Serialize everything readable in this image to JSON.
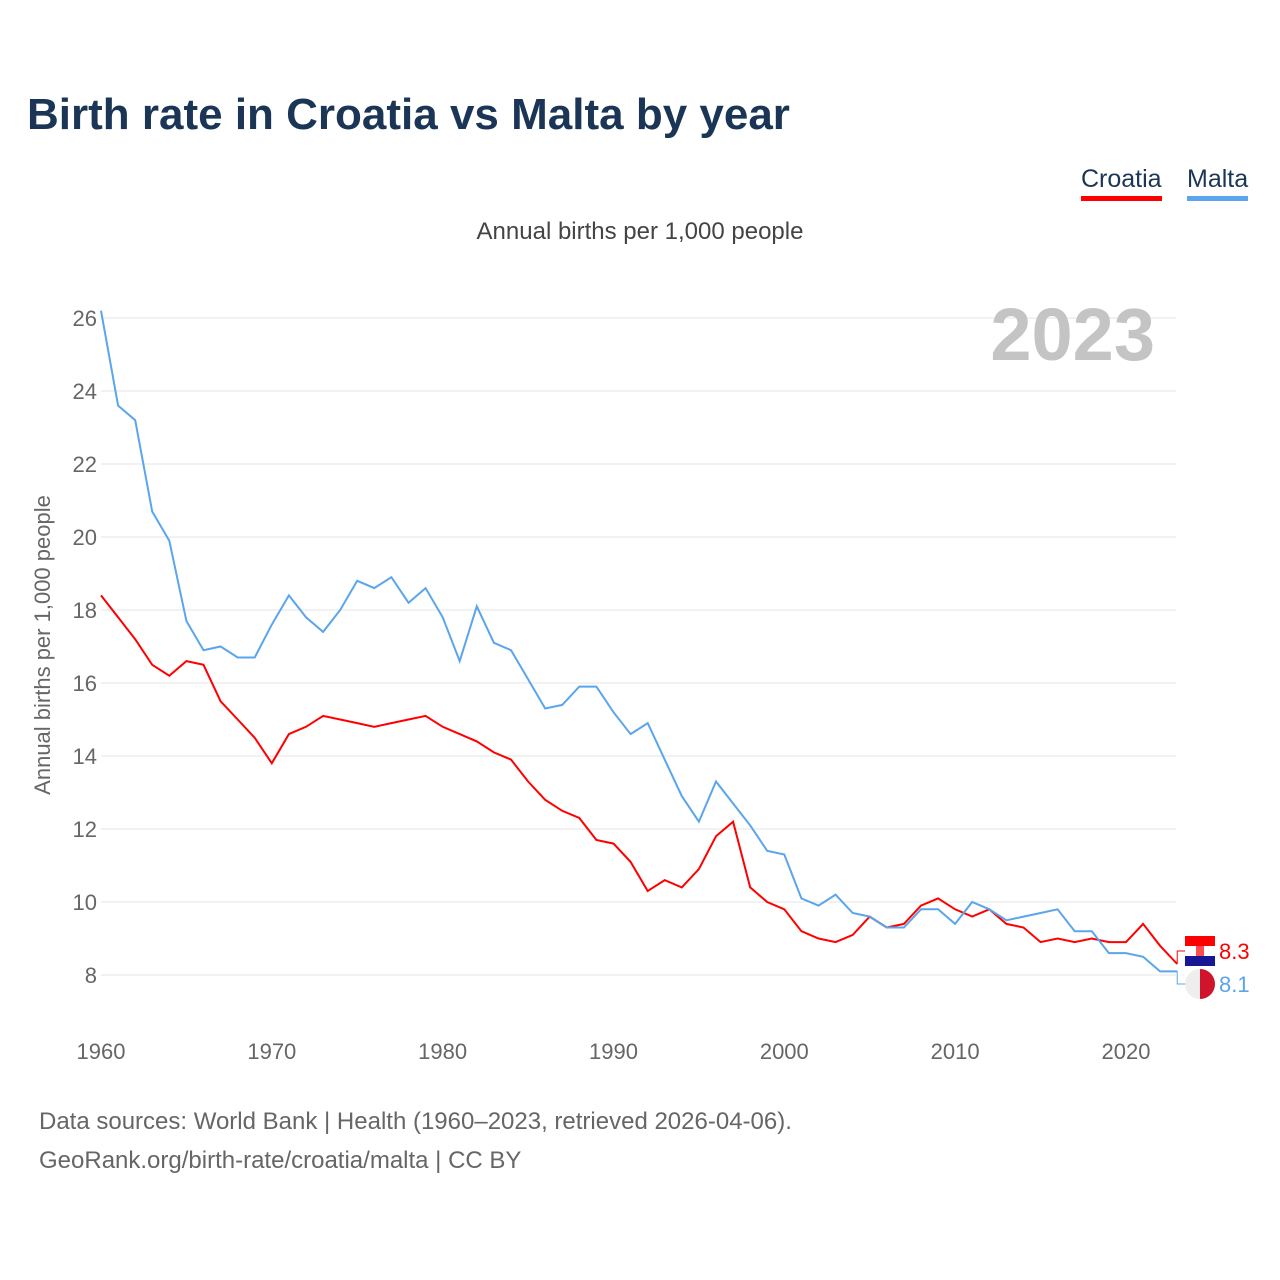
{
  "chart_data": {
    "type": "line",
    "title": "Birth rate in Croatia vs Malta by year",
    "subtitle": "Annual births per 1,000 people",
    "ylabel": "Annual births per 1,000 people",
    "xlabel": "",
    "year_watermark": "2023",
    "xlim": [
      1960,
      2023
    ],
    "ylim": [
      7,
      26.5
    ],
    "yticks": [
      8,
      10,
      12,
      14,
      16,
      18,
      20,
      22,
      24,
      26
    ],
    "xticks": [
      1960,
      1970,
      1980,
      1990,
      2000,
      2010,
      2020
    ],
    "grid": true,
    "legend_position": "top-right",
    "x_start": 1960,
    "series": [
      {
        "name": "Croatia",
        "color": "#ff0000",
        "end_label": "8.3",
        "values": [
          18.4,
          17.8,
          17.2,
          16.5,
          16.2,
          16.6,
          16.5,
          15.5,
          15.0,
          14.5,
          13.8,
          14.6,
          14.8,
          15.1,
          15.0,
          14.9,
          14.8,
          14.9,
          15.0,
          15.1,
          14.8,
          14.6,
          14.4,
          14.1,
          13.9,
          13.3,
          12.8,
          12.5,
          12.3,
          11.7,
          11.6,
          11.1,
          10.3,
          10.6,
          10.4,
          10.9,
          11.8,
          12.2,
          10.4,
          10.0,
          9.8,
          9.2,
          9.0,
          8.9,
          9.1,
          9.6,
          9.3,
          9.4,
          9.9,
          10.1,
          9.8,
          9.6,
          9.8,
          9.4,
          9.3,
          8.9,
          9.0,
          8.9,
          9.0,
          8.9,
          8.9,
          9.4,
          8.8,
          8.3
        ]
      },
      {
        "name": "Malta",
        "color": "#5aa5ec",
        "end_label": "8.1",
        "values": [
          26.2,
          23.6,
          23.2,
          20.7,
          19.9,
          17.7,
          16.9,
          17.0,
          16.7,
          16.7,
          17.6,
          18.4,
          17.8,
          17.4,
          18.0,
          18.8,
          18.6,
          18.9,
          18.2,
          18.6,
          17.8,
          16.6,
          18.1,
          17.1,
          16.9,
          16.1,
          15.3,
          15.4,
          15.9,
          15.9,
          15.2,
          14.6,
          14.9,
          13.9,
          12.9,
          12.2,
          13.3,
          12.7,
          12.1,
          11.4,
          11.3,
          10.1,
          9.9,
          10.2,
          9.7,
          9.6,
          9.3,
          9.3,
          9.8,
          9.8,
          9.4,
          10.0,
          9.8,
          9.5,
          9.6,
          9.7,
          9.8,
          9.2,
          9.2,
          8.6,
          8.6,
          8.5,
          8.1,
          8.1
        ]
      }
    ]
  },
  "footer": {
    "line1": "Data sources: World Bank | Health (1960–2023, retrieved 2026-04-06).",
    "line2": "GeoRank.org/birth-rate/croatia/malta | CC BY"
  }
}
